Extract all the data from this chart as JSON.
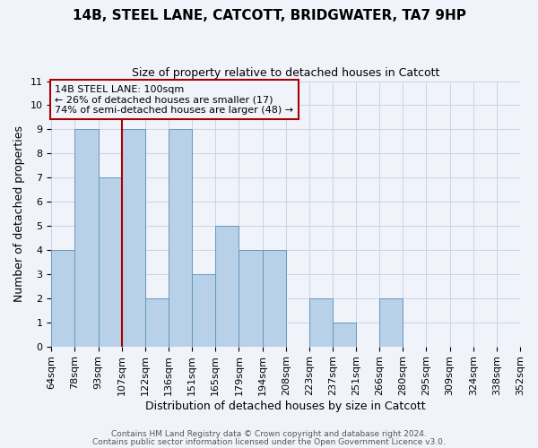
{
  "title": "14B, STEEL LANE, CATCOTT, BRIDGWATER, TA7 9HP",
  "subtitle": "Size of property relative to detached houses in Catcott",
  "xlabel": "Distribution of detached houses by size in Catcott",
  "ylabel": "Number of detached properties",
  "footer_line1": "Contains HM Land Registry data © Crown copyright and database right 2024.",
  "footer_line2": "Contains public sector information licensed under the Open Government Licence v3.0.",
  "bin_labels": [
    "64sqm",
    "78sqm",
    "93sqm",
    "107sqm",
    "122sqm",
    "136sqm",
    "151sqm",
    "165sqm",
    "179sqm",
    "194sqm",
    "208sqm",
    "223sqm",
    "237sqm",
    "251sqm",
    "266sqm",
    "280sqm",
    "295sqm",
    "309sqm",
    "324sqm",
    "338sqm",
    "352sqm"
  ],
  "bar_values": [
    4,
    9,
    7,
    9,
    2,
    9,
    3,
    5,
    4,
    4,
    0,
    2,
    1,
    0,
    2,
    0,
    0,
    0,
    0,
    0
  ],
  "ylim": [
    0,
    11
  ],
  "yticks": [
    0,
    1,
    2,
    3,
    4,
    5,
    6,
    7,
    8,
    9,
    10,
    11
  ],
  "bar_color": "#b8d0e8",
  "bar_edge_color": "#6699bb",
  "property_line_x": 3,
  "property_line_color": "#aa0000",
  "annotation_text_line1": "14B STEEL LANE: 100sqm",
  "annotation_text_line2": "← 26% of detached houses are smaller (17)",
  "annotation_text_line3": "74% of semi-detached houses are larger (48) →",
  "background_color": "#f0f4fa",
  "grid_color": "#c8d4e8",
  "title_fontsize": 11,
  "subtitle_fontsize": 9,
  "axis_label_fontsize": 9,
  "tick_fontsize": 8,
  "annotation_fontsize": 8,
  "footer_fontsize": 6.5
}
